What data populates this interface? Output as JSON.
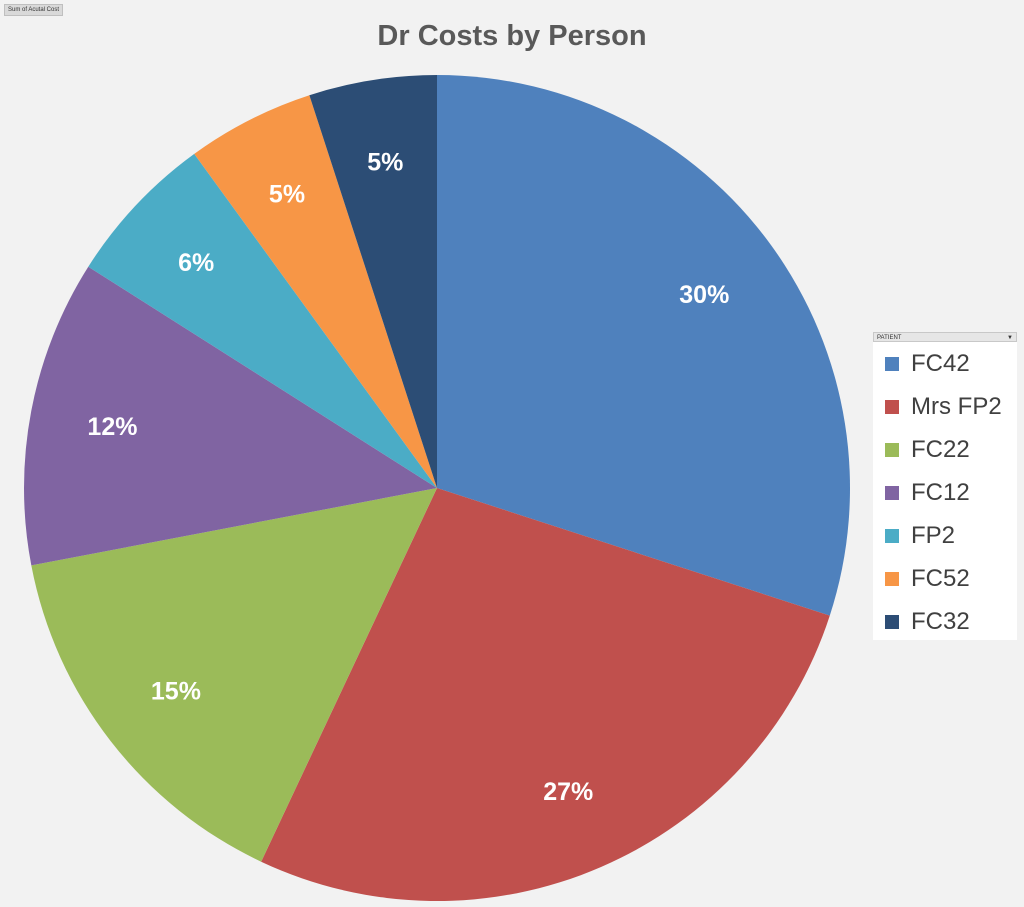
{
  "field_button": "Sum of Acutal Cost",
  "legend_field": "PATIENT",
  "chart_data": {
    "type": "pie",
    "title": "Dr Costs by Person",
    "slices": [
      {
        "label": "FC42",
        "value": 30,
        "display": "30%",
        "color": "#4F81BD"
      },
      {
        "label": "Mrs FP2",
        "value": 27,
        "display": "27%",
        "color": "#C0504D"
      },
      {
        "label": "FC22",
        "value": 15,
        "display": "15%",
        "color": "#9BBB59"
      },
      {
        "label": "FC12",
        "value": 12,
        "display": "12%",
        "color": "#8064A2"
      },
      {
        "label": "FP2",
        "value": 6,
        "display": "6%",
        "color": "#4BACC6"
      },
      {
        "label": "FC52",
        "value": 5,
        "display": "5%",
        "color": "#F79646"
      },
      {
        "label": "FC32",
        "value": 5,
        "display": "5%",
        "color": "#2C4D75"
      }
    ],
    "legend_position": "right",
    "label_color": "#ffffff"
  }
}
